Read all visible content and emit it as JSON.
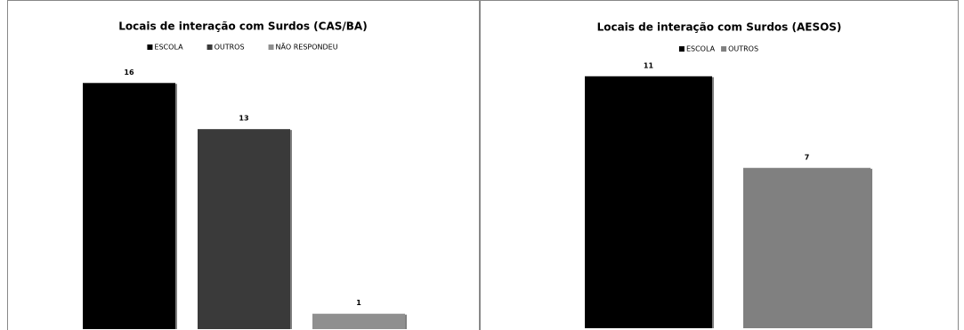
{
  "chart_data": [
    {
      "type": "bar",
      "title": "Locais de interação com Surdos (CAS/BA)",
      "categories": [
        "ESCOLA",
        "OUTROS",
        "NÃO RESPONDEU"
      ],
      "values": [
        16,
        13,
        1
      ],
      "colors": [
        "#000000",
        "#3a3a3a",
        "#8f8f8f"
      ],
      "ylim": [
        0,
        17
      ],
      "legend": "top"
    },
    {
      "type": "bar",
      "title": "Locais de interação com Surdos (AESOS)",
      "categories": [
        "ESCOLA",
        "OUTROS"
      ],
      "values": [
        11,
        7
      ],
      "colors": [
        "#000000",
        "#808080"
      ],
      "ylim": [
        0,
        12
      ],
      "legend": "top"
    }
  ]
}
